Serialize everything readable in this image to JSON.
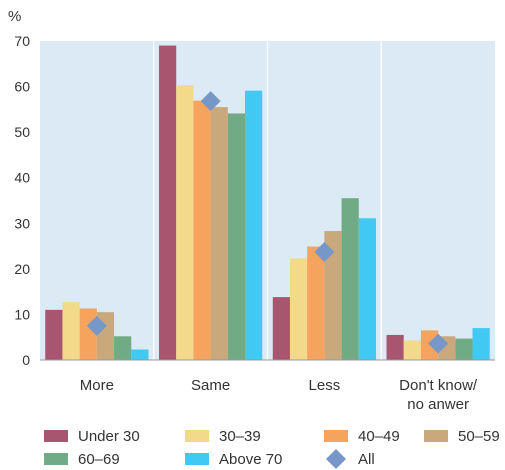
{
  "chart_data": {
    "type": "bar",
    "unit_label": "%",
    "ylim": [
      0,
      70
    ],
    "yticks": [
      0,
      10,
      20,
      30,
      40,
      50,
      60,
      70
    ],
    "grid": "vertical separators between categories",
    "categories": [
      {
        "lines": [
          "More"
        ]
      },
      {
        "lines": [
          "Same"
        ]
      },
      {
        "lines": [
          "Less"
        ]
      },
      {
        "lines": [
          "Don't know/",
          "no anwer"
        ]
      }
    ],
    "series": [
      {
        "name": "Under 30",
        "color": "#A85670",
        "values": [
          11,
          69,
          13.8,
          5.5
        ]
      },
      {
        "name": "30–39",
        "color": "#F3D98A",
        "values": [
          12.7,
          60.3,
          22.3,
          4.3
        ]
      },
      {
        "name": "40–49",
        "color": "#F6A35E",
        "values": [
          11.3,
          56.9,
          24.9,
          6.5
        ]
      },
      {
        "name": "50–59",
        "color": "#C9A97C",
        "values": [
          10.5,
          55.5,
          28.3,
          5.2
        ]
      },
      {
        "name": "60–69",
        "color": "#71AB86",
        "values": [
          5.2,
          54.1,
          35.5,
          4.7
        ]
      },
      {
        "name": "Above 70",
        "color": "#41C8F3",
        "values": [
          2.3,
          59.1,
          31.1,
          7
        ]
      }
    ],
    "all_marker": {
      "name": "All",
      "color": "#7797C9",
      "values": [
        7.5,
        56.8,
        23.7,
        3.6
      ]
    },
    "legend_placement": "bottom"
  }
}
